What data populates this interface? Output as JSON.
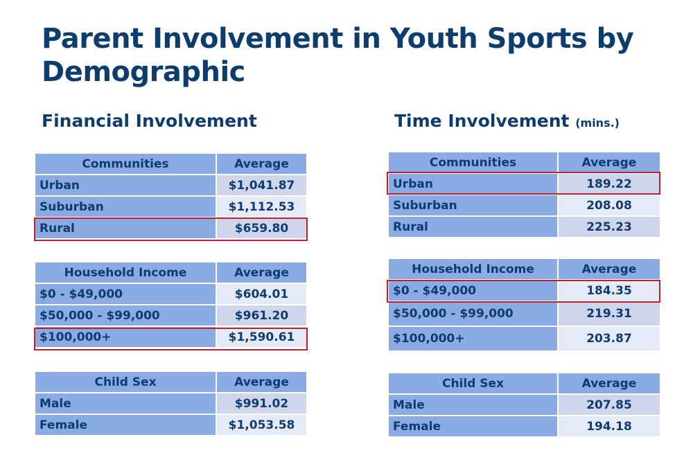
{
  "title": "Parent Involvement in Youth Sports by Demographic",
  "financial": {
    "heading": "Financial Involvement",
    "communities": {
      "header": [
        "Communities",
        "Average"
      ],
      "rows": [
        [
          "Urban",
          "$1,041.87"
        ],
        [
          "Suburban",
          "$1,112.53"
        ],
        [
          "Rural",
          "$659.80"
        ]
      ]
    },
    "income": {
      "header": [
        "Household Income",
        "Average"
      ],
      "rows": [
        [
          "$0 - $49,000",
          "$604.01"
        ],
        [
          "$50,000 - $99,000",
          "$961.20"
        ],
        [
          "$100,000+",
          "$1,590.61"
        ]
      ]
    },
    "sex": {
      "header": [
        "Child Sex",
        "Average"
      ],
      "rows": [
        [
          "Male",
          "$991.02"
        ],
        [
          "Female",
          "$1,053.58"
        ]
      ]
    }
  },
  "time": {
    "heading": "Time Involvement",
    "unit": "(mins.)",
    "communities": {
      "header": [
        "Communities",
        "Average"
      ],
      "rows": [
        [
          "Urban",
          "189.22"
        ],
        [
          "Suburban",
          "208.08"
        ],
        [
          "Rural",
          "225.23"
        ]
      ]
    },
    "income": {
      "header": [
        "Household Income",
        "Average"
      ],
      "rows": [
        [
          "$0 - $49,000",
          "184.35"
        ],
        [
          "$50,000 - $99,000",
          "219.31"
        ],
        [
          "$100,000+",
          "203.87"
        ]
      ]
    },
    "sex": {
      "header": [
        "Child Sex",
        "Average"
      ],
      "rows": [
        [
          "Male",
          "207.85"
        ],
        [
          "Female",
          "194.18"
        ]
      ]
    }
  },
  "highlight_color": "#c0202e"
}
